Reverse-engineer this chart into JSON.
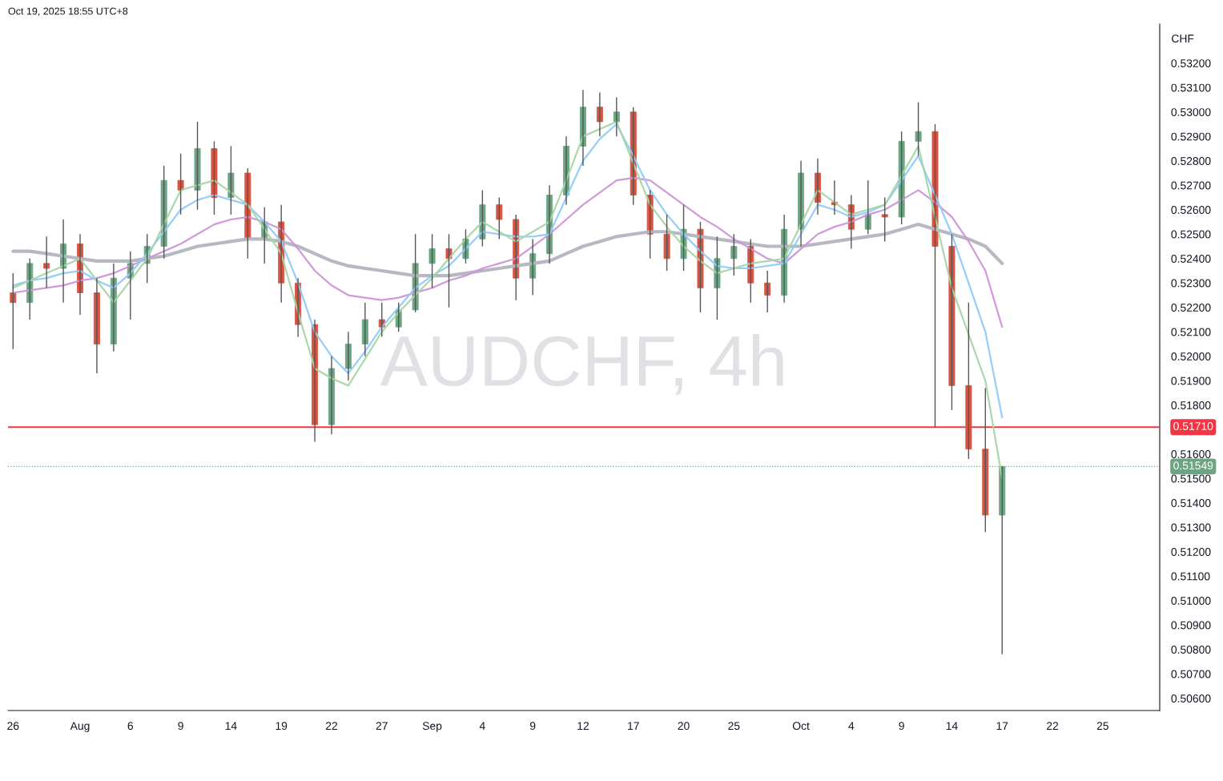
{
  "chart_data": {
    "type": "candlestick",
    "title": "AUDCHF, 4h",
    "ylabel": "CHF",
    "annotations": [
      "Oct 19, 2025 18:55 UTC+8"
    ],
    "categories": [
      "26",
      null,
      null,
      null,
      "Aug",
      null,
      null,
      "6",
      null,
      null,
      "9",
      null,
      null,
      "14",
      null,
      null,
      "19",
      null,
      null,
      "22",
      null,
      null,
      "27",
      null,
      null,
      "Sep",
      null,
      null,
      "4",
      null,
      null,
      "9",
      null,
      null,
      "12",
      null,
      null,
      "17",
      null,
      null,
      "20",
      null,
      null,
      "25",
      null,
      null,
      null,
      "Oct",
      null,
      null,
      "4",
      null,
      null,
      "9",
      null,
      null,
      "14",
      null,
      null,
      "17",
      null,
      null,
      "22",
      null,
      null,
      "25",
      null,
      null,
      null
    ],
    "ohlc": [
      [
        0.5226,
        0.5234,
        0.5203,
        0.5222
      ],
      [
        0.5222,
        0.524,
        0.5215,
        0.5238
      ],
      [
        0.5238,
        0.5249,
        0.5228,
        0.5236
      ],
      [
        0.5236,
        0.5256,
        0.5222,
        0.5246
      ],
      [
        0.5246,
        0.525,
        0.5217,
        0.5226
      ],
      [
        0.5226,
        0.5232,
        0.5193,
        0.5205
      ],
      [
        0.5205,
        0.5238,
        0.5202,
        0.5232
      ],
      [
        0.5232,
        0.5243,
        0.5215,
        0.5238
      ],
      [
        0.5238,
        0.525,
        0.523,
        0.5245
      ],
      [
        0.5245,
        0.5278,
        0.524,
        0.5272
      ],
      [
        0.5272,
        0.5283,
        0.5258,
        0.5268
      ],
      [
        0.5268,
        0.5296,
        0.526,
        0.5285
      ],
      [
        0.5285,
        0.5288,
        0.5258,
        0.5265
      ],
      [
        0.5265,
        0.5286,
        0.5258,
        0.5275
      ],
      [
        0.5275,
        0.5277,
        0.524,
        0.5248
      ],
      [
        0.5248,
        0.5261,
        0.5238,
        0.5255
      ],
      [
        0.5255,
        0.5262,
        0.5222,
        0.523
      ],
      [
        0.523,
        0.5232,
        0.5208,
        0.5213
      ],
      [
        0.5213,
        0.5215,
        0.5165,
        0.5172
      ],
      [
        0.5172,
        0.52,
        0.5168,
        0.5195
      ],
      [
        0.5195,
        0.521,
        0.519,
        0.5205
      ],
      [
        0.5205,
        0.5222,
        0.52,
        0.5215
      ],
      [
        0.5215,
        0.5222,
        0.5208,
        0.5212
      ],
      [
        0.5212,
        0.5222,
        0.521,
        0.5219
      ],
      [
        0.5219,
        0.525,
        0.5218,
        0.5238
      ],
      [
        0.5238,
        0.525,
        0.5228,
        0.5244
      ],
      [
        0.5244,
        0.525,
        0.522,
        0.524
      ],
      [
        0.524,
        0.5252,
        0.5238,
        0.5248
      ],
      [
        0.5248,
        0.5268,
        0.5245,
        0.5262
      ],
      [
        0.5262,
        0.5265,
        0.5248,
        0.5256
      ],
      [
        0.5256,
        0.5258,
        0.5223,
        0.5232
      ],
      [
        0.5232,
        0.5248,
        0.5225,
        0.5242
      ],
      [
        0.5242,
        0.527,
        0.5238,
        0.5266
      ],
      [
        0.5266,
        0.529,
        0.5262,
        0.5286
      ],
      [
        0.5286,
        0.5309,
        0.5278,
        0.5302
      ],
      [
        0.5302,
        0.5308,
        0.529,
        0.5296
      ],
      [
        0.5296,
        0.5306,
        0.529,
        0.53
      ],
      [
        0.53,
        0.5302,
        0.5262,
        0.5266
      ],
      [
        0.5266,
        0.5268,
        0.524,
        0.525
      ],
      [
        0.525,
        0.5258,
        0.5235,
        0.524
      ],
      [
        0.524,
        0.5262,
        0.5235,
        0.5252
      ],
      [
        0.5252,
        0.5255,
        0.5218,
        0.5228
      ],
      [
        0.5228,
        0.5249,
        0.5215,
        0.524
      ],
      [
        0.524,
        0.525,
        0.5233,
        0.5245
      ],
      [
        0.5245,
        0.5248,
        0.5222,
        0.523
      ],
      [
        0.523,
        0.5235,
        0.5218,
        0.5225
      ],
      [
        0.5225,
        0.5258,
        0.5222,
        0.5252
      ],
      [
        0.5252,
        0.528,
        0.5245,
        0.5275
      ],
      [
        0.5275,
        0.5281,
        0.5258,
        0.5263
      ],
      [
        0.5263,
        0.5272,
        0.5258,
        0.5262
      ],
      [
        0.5262,
        0.5266,
        0.5244,
        0.5252
      ],
      [
        0.5252,
        0.5272,
        0.525,
        0.5258
      ],
      [
        0.5258,
        0.5265,
        0.5247,
        0.5257
      ],
      [
        0.5257,
        0.5292,
        0.5254,
        0.5288
      ],
      [
        0.5288,
        0.5304,
        0.5282,
        0.5292
      ],
      [
        0.5292,
        0.5295,
        0.5171,
        0.5245
      ],
      [
        0.5245,
        0.525,
        0.5178,
        0.5188
      ],
      [
        0.5188,
        0.5222,
        0.5158,
        0.5162
      ],
      [
        0.5162,
        0.5187,
        0.5128,
        0.5135
      ],
      [
        0.5135,
        0.5155,
        0.5078,
        0.51549
      ],
      null,
      null,
      null,
      null,
      null,
      null,
      null,
      null,
      null
    ],
    "colors": [
      "#d75442",
      "#6ba583",
      "#d75442",
      "#6ba583",
      "#d75442",
      "#d75442",
      "#6ba583",
      "#6ba583",
      "#6ba583",
      "#6ba583",
      "#d75442",
      "#6ba583",
      "#d75442",
      "#6ba583",
      "#d75442",
      "#6ba583",
      "#d75442",
      "#d75442",
      "#d75442",
      "#6ba583",
      "#6ba583",
      "#6ba583",
      "#d75442",
      "#6ba583",
      "#6ba583",
      "#6ba583",
      "#d75442",
      "#6ba583",
      "#6ba583",
      "#d75442",
      "#d75442",
      "#6ba583",
      "#6ba583",
      "#6ba583",
      "#6ba583",
      "#d75442",
      "#6ba583",
      "#d75442",
      "#d75442",
      "#d75442",
      "#6ba583",
      "#d75442",
      "#6ba583",
      "#6ba583",
      "#d75442",
      "#d75442",
      "#6ba583",
      "#6ba583",
      "#d75442",
      "#d75442",
      "#d75442",
      "#6ba583",
      "#d75442",
      "#6ba583",
      "#6ba583",
      "#d75442",
      "#d75442",
      "#d75442",
      "#d75442",
      "#6ba583",
      null,
      null,
      null,
      null,
      null,
      null,
      null,
      null,
      null
    ],
    "series": [
      {
        "type": "line",
        "color": "#b2b5be",
        "values": [
          0.5243,
          0.5243,
          0.5242,
          0.5241,
          0.524,
          0.5239,
          0.5239,
          0.5239,
          0.524,
          0.5241,
          0.5243,
          0.5245,
          0.5246,
          0.5247,
          0.5248,
          0.5248,
          0.5247,
          0.5245,
          0.5242,
          0.5239,
          0.5237,
          0.5236,
          0.5235,
          0.5234,
          0.5233,
          0.5233,
          0.5233,
          0.5234,
          0.5235,
          0.5236,
          0.5237,
          0.5238,
          0.5239,
          0.5242,
          0.5245,
          0.5247,
          0.5249,
          0.525,
          0.5251,
          0.5251,
          0.525,
          0.5249,
          0.5248,
          0.5247,
          0.5246,
          0.5245,
          0.5245,
          0.5245,
          0.5246,
          0.5247,
          0.5248,
          0.5249,
          0.525,
          0.5252,
          0.5254,
          0.5252,
          0.525,
          0.5248,
          0.5245,
          0.5238,
          null,
          null,
          null,
          null,
          null,
          null,
          null,
          null,
          null
        ]
      },
      {
        "type": "line",
        "color": "#ce93d8",
        "values": [
          0.5226,
          0.5227,
          0.5228,
          0.5229,
          0.5231,
          0.5232,
          0.5234,
          0.5237,
          0.524,
          0.5243,
          0.5246,
          0.525,
          0.5254,
          0.5256,
          0.5257,
          0.5255,
          0.5252,
          0.5244,
          0.5235,
          0.5229,
          0.5225,
          0.5224,
          0.5223,
          0.5224,
          0.5226,
          0.5228,
          0.5231,
          0.5233,
          0.5236,
          0.5238,
          0.524,
          0.5245,
          0.525,
          0.5256,
          0.5262,
          0.5267,
          0.5272,
          0.5273,
          0.5272,
          0.5267,
          0.5262,
          0.5257,
          0.5253,
          0.5248,
          0.5244,
          0.524,
          0.5238,
          0.5244,
          0.525,
          0.5253,
          0.5255,
          0.5258,
          0.526,
          0.5264,
          0.5268,
          0.5263,
          0.5257,
          0.5247,
          0.5235,
          0.5212,
          null,
          null,
          null,
          null,
          null,
          null,
          null,
          null,
          null
        ]
      },
      {
        "type": "line",
        "color": "#90caf9",
        "values": [
          0.5229,
          0.5231,
          0.5232,
          0.5234,
          0.5235,
          0.5231,
          0.5228,
          0.5234,
          0.5242,
          0.5251,
          0.526,
          0.5264,
          0.5266,
          0.5264,
          0.5262,
          0.5255,
          0.5247,
          0.523,
          0.521,
          0.52,
          0.5193,
          0.5202,
          0.5212,
          0.522,
          0.5228,
          0.5233,
          0.5237,
          0.5244,
          0.5251,
          0.525,
          0.5249,
          0.5249,
          0.525,
          0.5265,
          0.528,
          0.5289,
          0.5295,
          0.5282,
          0.5268,
          0.5258,
          0.525,
          0.5243,
          0.5237,
          0.5236,
          0.5236,
          0.5237,
          0.5238,
          0.525,
          0.5262,
          0.526,
          0.5257,
          0.5259,
          0.5262,
          0.5272,
          0.5282,
          0.5266,
          0.525,
          0.523,
          0.521,
          0.5175,
          null,
          null,
          null,
          null,
          null,
          null,
          null,
          null,
          null
        ]
      },
      {
        "type": "line",
        "color": "#a5d6a7",
        "values": [
          0.5228,
          0.5231,
          0.5234,
          0.5237,
          0.524,
          0.5231,
          0.5222,
          0.5231,
          0.524,
          0.5254,
          0.5268,
          0.527,
          0.5272,
          0.5267,
          0.5262,
          0.5252,
          0.5242,
          0.5218,
          0.5195,
          0.5191,
          0.5188,
          0.5199,
          0.521,
          0.5218,
          0.5225,
          0.5232,
          0.524,
          0.5248,
          0.5255,
          0.5251,
          0.5247,
          0.5251,
          0.5255,
          0.5272,
          0.529,
          0.5293,
          0.5296,
          0.5279,
          0.5262,
          0.5253,
          0.5245,
          0.5239,
          0.5234,
          0.5236,
          0.5238,
          0.5239,
          0.524,
          0.5254,
          0.5268,
          0.5263,
          0.5258,
          0.526,
          0.5262,
          0.5274,
          0.5286,
          0.5257,
          0.5228,
          0.5209,
          0.519,
          0.515,
          null,
          null,
          null,
          null,
          null,
          null,
          null,
          null,
          null
        ]
      }
    ],
    "ref_lines": [
      {
        "axis": "y",
        "value": 0.5171,
        "label": "0.51710",
        "color": "#f23645",
        "line_style": "solid"
      },
      {
        "axis": "y",
        "value": 0.51549,
        "label": "0.51549",
        "color": "#6ba583",
        "line_style": "dotted"
      }
    ],
    "ylim": [
      0.5055,
      0.5336
    ],
    "yticks": [
      {
        "value": 0.506,
        "label": "0.50600"
      },
      {
        "value": 0.507,
        "label": "0.50700"
      },
      {
        "value": 0.508,
        "label": "0.50800"
      },
      {
        "value": 0.509,
        "label": "0.50900"
      },
      {
        "value": 0.51,
        "label": "0.51000"
      },
      {
        "value": 0.511,
        "label": "0.51100"
      },
      {
        "value": 0.512,
        "label": "0.51200"
      },
      {
        "value": 0.513,
        "label": "0.51300"
      },
      {
        "value": 0.514,
        "label": "0.51400"
      },
      {
        "value": 0.515,
        "label": "0.51500"
      },
      {
        "value": 0.516,
        "label": "0.51600"
      },
      {
        "value": 0.517,
        "label": null
      },
      {
        "value": 0.518,
        "label": "0.51800"
      },
      {
        "value": 0.519,
        "label": "0.51900"
      },
      {
        "value": 0.52,
        "label": "0.52000"
      },
      {
        "value": 0.521,
        "label": "0.52100"
      },
      {
        "value": 0.522,
        "label": "0.52200"
      },
      {
        "value": 0.523,
        "label": "0.52300"
      },
      {
        "value": 0.524,
        "label": "0.52400"
      },
      {
        "value": 0.525,
        "label": "0.52500"
      },
      {
        "value": 0.526,
        "label": "0.52600"
      },
      {
        "value": 0.527,
        "label": "0.52700"
      },
      {
        "value": 0.528,
        "label": "0.52800"
      },
      {
        "value": 0.529,
        "label": "0.52900"
      },
      {
        "value": 0.53,
        "label": "0.53000"
      },
      {
        "value": 0.531,
        "label": "0.53100"
      },
      {
        "value": 0.532,
        "label": "0.53200"
      }
    ],
    "grid": false,
    "legend": false
  }
}
